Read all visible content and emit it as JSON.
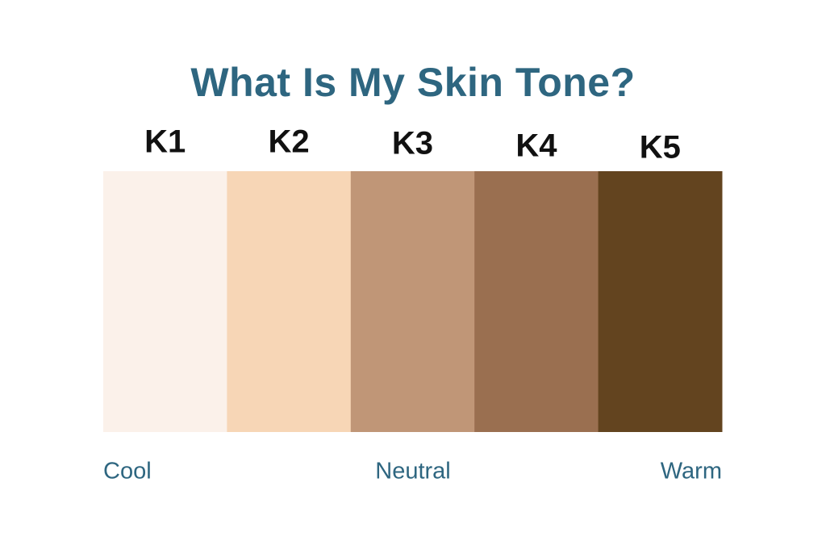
{
  "title": "What Is My Skin Tone?",
  "swatches": [
    {
      "label": "K1",
      "color": "#fbf1ea"
    },
    {
      "label": "K2",
      "color": "#f7d6b6"
    },
    {
      "label": "K3",
      "color": "#c09677"
    },
    {
      "label": "K4",
      "color": "#9a6f50"
    },
    {
      "label": "K5",
      "color": "#63441f"
    }
  ],
  "scale": [
    "Cool",
    "Neutral",
    "Warm"
  ]
}
